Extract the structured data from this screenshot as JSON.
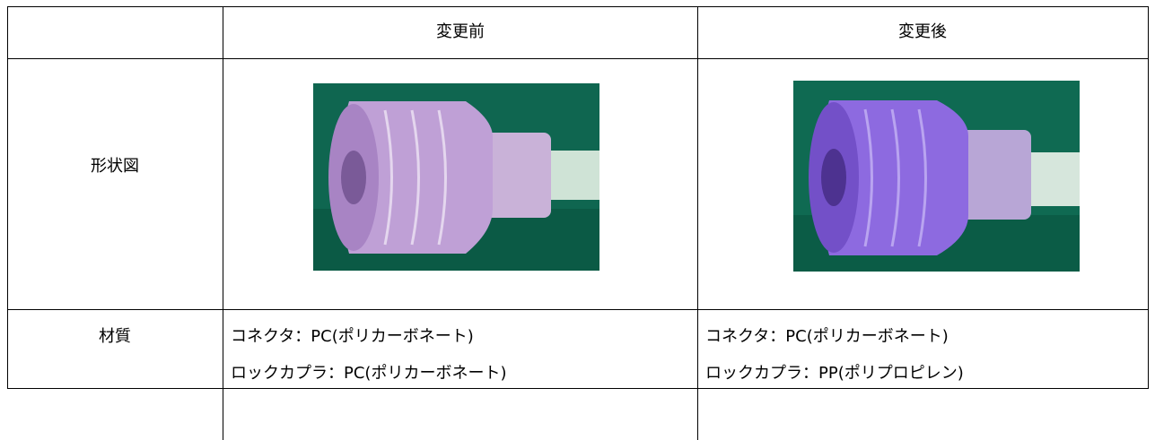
{
  "table": {
    "header": [
      "変更前",
      "変更後"
    ],
    "rows": [
      {
        "label": "形状図"
      },
      {
        "label": "材質",
        "before": [
          "コネクタ：PC(ポリカーボネート)",
          "ロックカプラ：PC(ポリカーボネート)"
        ],
        "after": [
          "コネクタ：PC(ポリカーボネート)",
          "ロックカプラ：PP(ポリプロピレン)"
        ]
      }
    ]
  }
}
